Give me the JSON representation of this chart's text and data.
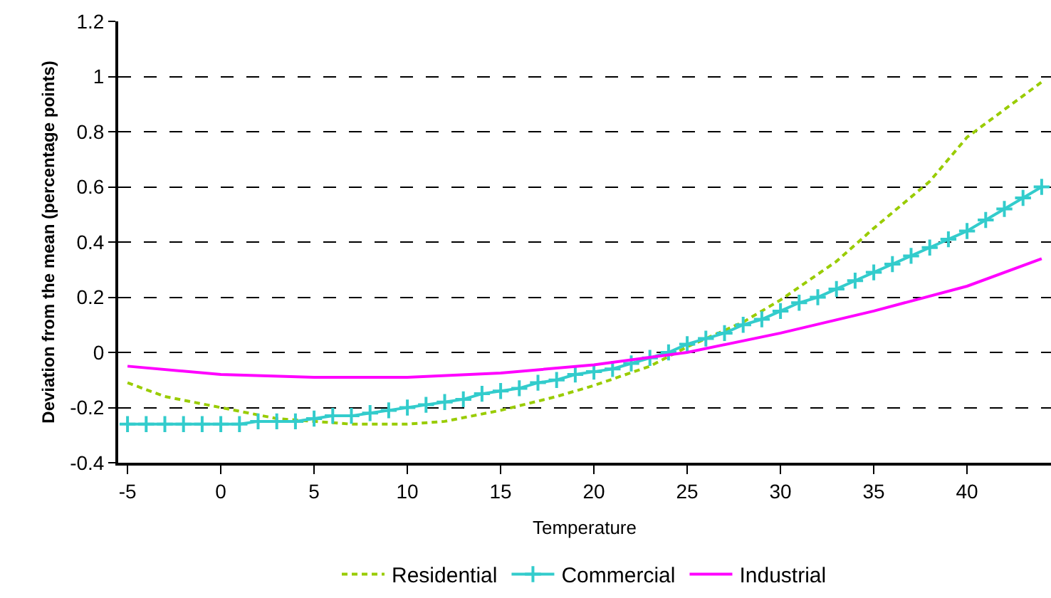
{
  "chart_data": {
    "type": "line",
    "xlabel": "Temperature",
    "ylabel": "Deviation from the mean (percentage points)",
    "xlim": [
      -5.5,
      44.5
    ],
    "xticks": [
      -5,
      0,
      5,
      10,
      15,
      20,
      25,
      30,
      35,
      40
    ],
    "ylim": [
      -0.4,
      1.2
    ],
    "yticks": [
      -0.4,
      -0.2,
      0,
      0.2,
      0.4,
      0.6,
      0.8,
      1,
      1.2
    ],
    "grid": "y",
    "legend": "bottom",
    "series": [
      {
        "name": "Residential",
        "color": "#99cc00",
        "line_style": "dashed",
        "marker": "none",
        "x": [
          -5,
          -3,
          0,
          3,
          5,
          7,
          10,
          12,
          15,
          18,
          20,
          23,
          25,
          28,
          30,
          33,
          35,
          38,
          40,
          42,
          44
        ],
        "values": [
          -0.11,
          -0.16,
          -0.2,
          -0.24,
          -0.25,
          -0.26,
          -0.26,
          -0.25,
          -0.21,
          -0.16,
          -0.12,
          -0.05,
          0.02,
          0.11,
          0.19,
          0.33,
          0.45,
          0.62,
          0.78,
          0.88,
          0.98
        ]
      },
      {
        "name": "Commercial",
        "color": "#33cccc",
        "line_style": "solid",
        "marker": "cross",
        "x": [
          -5,
          -4,
          -3,
          -2,
          -1,
          0,
          1,
          2,
          3,
          4,
          5,
          6,
          7,
          8,
          9,
          10,
          11,
          12,
          13,
          14,
          15,
          16,
          17,
          18,
          19,
          20,
          21,
          22,
          23,
          24,
          25,
          26,
          27,
          28,
          29,
          30,
          31,
          32,
          33,
          34,
          35,
          36,
          37,
          38,
          39,
          40,
          41,
          42,
          43,
          44
        ],
        "values": [
          -0.26,
          -0.26,
          -0.26,
          -0.26,
          -0.26,
          -0.26,
          -0.26,
          -0.25,
          -0.25,
          -0.25,
          -0.24,
          -0.23,
          -0.23,
          -0.22,
          -0.21,
          -0.2,
          -0.19,
          -0.18,
          -0.17,
          -0.15,
          -0.14,
          -0.13,
          -0.11,
          -0.1,
          -0.08,
          -0.07,
          -0.06,
          -0.04,
          -0.02,
          0,
          0.03,
          0.05,
          0.07,
          0.1,
          0.12,
          0.15,
          0.18,
          0.2,
          0.23,
          0.26,
          0.29,
          0.32,
          0.35,
          0.38,
          0.41,
          0.44,
          0.48,
          0.52,
          0.56,
          0.6
        ]
      },
      {
        "name": "Industrial",
        "color": "#ff00ff",
        "line_style": "solid",
        "marker": "none",
        "x": [
          -5,
          0,
          5,
          10,
          15,
          20,
          25,
          30,
          35,
          40,
          44
        ],
        "values": [
          -0.05,
          -0.08,
          -0.09,
          -0.09,
          -0.075,
          -0.045,
          0,
          0.07,
          0.15,
          0.24,
          0.34
        ]
      }
    ]
  }
}
